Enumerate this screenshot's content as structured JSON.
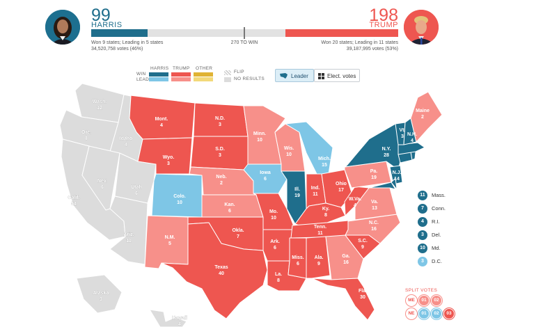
{
  "header": {
    "harris": {
      "electoral_votes": "99",
      "name": "HARRIS",
      "states_text": "Won 9 states; Leading in 5 states",
      "popular_votes": "34,520,758 votes (46%)"
    },
    "trump": {
      "electoral_votes": "198",
      "name": "TRUMP",
      "states_text": "Won 20 states; Leading in 11 states",
      "popular_votes": "39,187,995 votes (53%)"
    },
    "threshold_label": "270 TO WIN",
    "progress": {
      "harris_fraction": 0.183,
      "trump_fraction": 0.368,
      "total_votes": 538
    }
  },
  "legend": {
    "columns": [
      "HARRIS",
      "TRUMP",
      "OTHER"
    ],
    "rows": [
      "WIN",
      "LEAD"
    ],
    "flip_label": "FLIP",
    "no_results_label": "NO RESULTS",
    "colors": {
      "harris_win": "#1f6e8c",
      "harris_lead": "#7ec6e6",
      "trump_win": "#ee5650",
      "trump_lead": "#f7908a",
      "other_win": "#e0b334",
      "other_lead": "#f3d97a",
      "no_results": "#dcdcdc"
    }
  },
  "view_toggle": {
    "leader_label": "Leader",
    "elect_votes_label": "Elect. votes",
    "leader_icon": "us-map-icon",
    "elect_icon": "grid-icon"
  },
  "states": [
    {
      "abbr": "Wash.",
      "ev": "12",
      "status": "none"
    },
    {
      "abbr": "Ore.",
      "ev": "8",
      "status": "none"
    },
    {
      "abbr": "Idaho",
      "ev": "4",
      "status": "none"
    },
    {
      "abbr": "Calif.",
      "ev": "54",
      "status": "none"
    },
    {
      "abbr": "Nev.",
      "ev": "6",
      "status": "none"
    },
    {
      "abbr": "Utah",
      "ev": "6",
      "status": "none"
    },
    {
      "abbr": "Ariz.",
      "ev": "11",
      "status": "none"
    },
    {
      "abbr": "Mont.",
      "ev": "4",
      "status": "trump_win"
    },
    {
      "abbr": "Wyo.",
      "ev": "3",
      "status": "trump_win"
    },
    {
      "abbr": "Colo.",
      "ev": "10",
      "status": "harris_lead"
    },
    {
      "abbr": "N.M.",
      "ev": "5",
      "status": "trump_lead"
    },
    {
      "abbr": "N.D.",
      "ev": "3",
      "status": "trump_win"
    },
    {
      "abbr": "S.D.",
      "ev": "3",
      "status": "trump_win"
    },
    {
      "abbr": "Neb.",
      "ev": "2",
      "status": "trump_lead"
    },
    {
      "abbr": "Kan.",
      "ev": "6",
      "status": "trump_lead"
    },
    {
      "abbr": "Okla.",
      "ev": "7",
      "status": "trump_win"
    },
    {
      "abbr": "Texas",
      "ev": "40",
      "status": "trump_win"
    },
    {
      "abbr": "Minn.",
      "ev": "10",
      "status": "trump_lead"
    },
    {
      "abbr": "Iowa",
      "ev": "6",
      "status": "harris_lead"
    },
    {
      "abbr": "Mo.",
      "ev": "10",
      "status": "trump_win"
    },
    {
      "abbr": "Ark.",
      "ev": "6",
      "status": "trump_win"
    },
    {
      "abbr": "La.",
      "ev": "8",
      "status": "trump_win"
    },
    {
      "abbr": "Wis.",
      "ev": "10",
      "status": "trump_lead"
    },
    {
      "abbr": "Ill.",
      "ev": "19",
      "status": "harris_win"
    },
    {
      "abbr": "Mich.",
      "ev": "15",
      "status": "harris_lead"
    },
    {
      "abbr": "Ind.",
      "ev": "11",
      "status": "trump_win"
    },
    {
      "abbr": "Ohio",
      "ev": "17",
      "status": "trump_win"
    },
    {
      "abbr": "Ky.",
      "ev": "8",
      "status": "trump_win"
    },
    {
      "abbr": "Tenn.",
      "ev": "11",
      "status": "trump_win"
    },
    {
      "abbr": "Miss.",
      "ev": "6",
      "status": "trump_win"
    },
    {
      "abbr": "Ala.",
      "ev": "9",
      "status": "trump_win"
    },
    {
      "abbr": "Ga.",
      "ev": "16",
      "status": "trump_lead"
    },
    {
      "abbr": "Fla.",
      "ev": "30",
      "status": "trump_win"
    },
    {
      "abbr": "S.C.",
      "ev": "9",
      "status": "trump_win"
    },
    {
      "abbr": "N.C.",
      "ev": "16",
      "status": "trump_lead"
    },
    {
      "abbr": "Va.",
      "ev": "13",
      "status": "trump_lead"
    },
    {
      "abbr": "W.Va.",
      "ev": "4",
      "status": "trump_win"
    },
    {
      "abbr": "Pa.",
      "ev": "19",
      "status": "trump_lead"
    },
    {
      "abbr": "N.Y.",
      "ev": "28",
      "status": "harris_win"
    },
    {
      "abbr": "N.J.",
      "ev": "14",
      "status": "harris_win"
    },
    {
      "abbr": "Vt.",
      "ev": "3",
      "status": "harris_win"
    },
    {
      "abbr": "N.H.",
      "ev": "4",
      "status": "harris_win"
    },
    {
      "abbr": "Maine",
      "ev": "2",
      "status": "trump_lead"
    },
    {
      "abbr": "Alaska",
      "ev": "3",
      "status": "none"
    },
    {
      "abbr": "Hawaii",
      "ev": "4",
      "status": "none"
    }
  ],
  "small_states": [
    {
      "ev": "11",
      "name": "Mass.",
      "status": "harris_win"
    },
    {
      "ev": "7",
      "name": "Conn.",
      "status": "harris_win"
    },
    {
      "ev": "4",
      "name": "R.I.",
      "status": "harris_win"
    },
    {
      "ev": "3",
      "name": "Del.",
      "status": "harris_win"
    },
    {
      "ev": "10",
      "name": "Md.",
      "status": "harris_win"
    },
    {
      "ev": "3",
      "name": "D.C.",
      "status": "harris_lead"
    }
  ],
  "split_votes": {
    "title": "SPLIT VOTES",
    "rows": [
      {
        "state": "ME",
        "districts": [
          "01",
          "02"
        ]
      },
      {
        "state": "NE",
        "districts": [
          "01",
          "02",
          "03"
        ]
      }
    ]
  }
}
